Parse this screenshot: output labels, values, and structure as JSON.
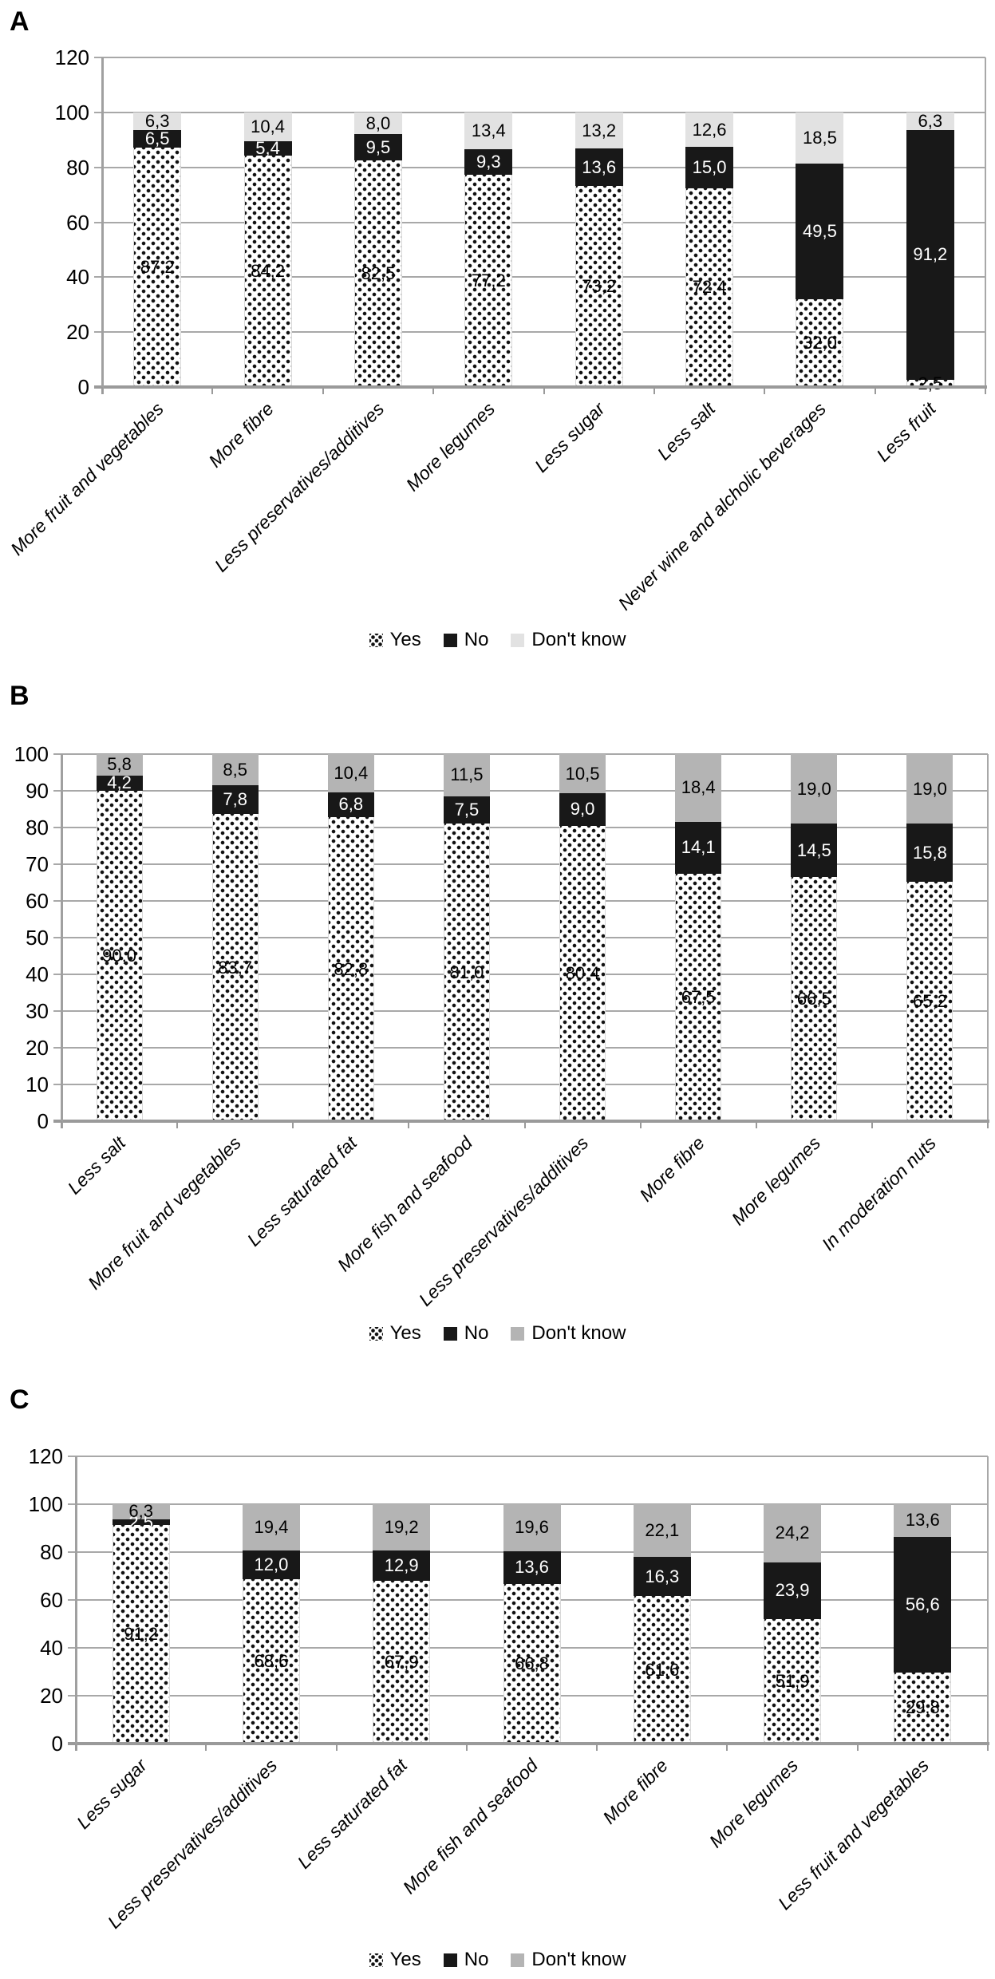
{
  "figure": {
    "description": "Three stacked bar charts (panels A, B, C) showing Yes / No / Don't know percentages for dietary recommendation items",
    "panel_letters": [
      "A",
      "B",
      "C"
    ]
  },
  "colors": {
    "no_fill": "#181818",
    "dont_know_light": "#e2e2e2",
    "dont_know_medium": "#b4b4b4",
    "gridline": "#a8a8a8",
    "axis": "#9a9a9a",
    "dot_pattern": "#111111",
    "background": "#ffffff",
    "label_on_dark": "#ffffff",
    "label_on_light": "#000000"
  },
  "chart_data": [
    {
      "type": "bar",
      "stacked": true,
      "panel": "A",
      "categories": [
        "More fruit and vegetables",
        "More fibre",
        "Less preservatives/additives",
        "More legumes",
        "Less sugar",
        "Less salt",
        "Never wine and alcholic beverages",
        "Less fruit"
      ],
      "series": [
        {
          "name": "Yes",
          "fill": "dots",
          "values": [
            87.2,
            84.2,
            82.5,
            77.2,
            73.2,
            72.4,
            32.0,
            2.5
          ]
        },
        {
          "name": "No",
          "color": "#181818",
          "values": [
            6.5,
            5.4,
            9.5,
            9.3,
            13.6,
            15.0,
            49.5,
            91.2
          ]
        },
        {
          "name": "Don't know",
          "color": "#e2e2e2",
          "values": [
            6.3,
            10.4,
            8.0,
            13.4,
            13.2,
            12.6,
            18.5,
            6.3
          ]
        }
      ],
      "ylim": [
        0,
        120
      ],
      "ytick_step": 20,
      "grid": true,
      "legend": [
        "Yes",
        "No",
        "Don't know"
      ],
      "legend_position": "bottom",
      "decimal_separator": ",",
      "xlabel": "",
      "ylabel": ""
    },
    {
      "type": "bar",
      "stacked": true,
      "panel": "B",
      "categories": [
        "Less salt",
        "More fruit and vegetables",
        "Less saturated fat",
        "More fish and seafood",
        "Less preservatives/additives",
        "More fibre",
        "More legumes",
        "In moderation nuts"
      ],
      "series": [
        {
          "name": "Yes",
          "fill": "dots",
          "values": [
            90.0,
            83.7,
            82.8,
            81.0,
            80.4,
            67.5,
            66.5,
            65.2
          ]
        },
        {
          "name": "No",
          "color": "#181818",
          "values": [
            4.2,
            7.8,
            6.8,
            7.5,
            9.0,
            14.1,
            14.5,
            15.8
          ]
        },
        {
          "name": "Don't know",
          "color": "#b4b4b4",
          "values": [
            5.8,
            8.5,
            10.4,
            11.5,
            10.5,
            18.4,
            19.0,
            19.0
          ]
        }
      ],
      "ylim": [
        0,
        100
      ],
      "ytick_step": 10,
      "grid": true,
      "legend": [
        "Yes",
        "No",
        "Don't know"
      ],
      "legend_position": "bottom",
      "decimal_separator": ",",
      "xlabel": "",
      "ylabel": ""
    },
    {
      "type": "bar",
      "stacked": true,
      "panel": "C",
      "categories": [
        "Less sugar",
        "Less preservatives/additives",
        "Less saturated fat",
        "More fish and seafood",
        "More fibre",
        "More legumes",
        "Less fruit and vegetables"
      ],
      "series": [
        {
          "name": "Yes",
          "fill": "dots",
          "values": [
            91.2,
            68.6,
            67.9,
            66.8,
            61.6,
            51.9,
            29.8
          ]
        },
        {
          "name": "No",
          "color": "#181818",
          "values": [
            2.5,
            12.0,
            12.9,
            13.6,
            16.3,
            23.9,
            56.6
          ]
        },
        {
          "name": "Don't know",
          "color": "#b4b4b4",
          "values": [
            6.3,
            19.4,
            19.2,
            19.6,
            22.1,
            24.2,
            13.6
          ]
        }
      ],
      "ylim": [
        0,
        120
      ],
      "ytick_step": 20,
      "grid": true,
      "legend": [
        "Yes",
        "No",
        "Don't know"
      ],
      "legend_position": "bottom",
      "decimal_separator": ",",
      "xlabel": "",
      "ylabel": ""
    }
  ]
}
